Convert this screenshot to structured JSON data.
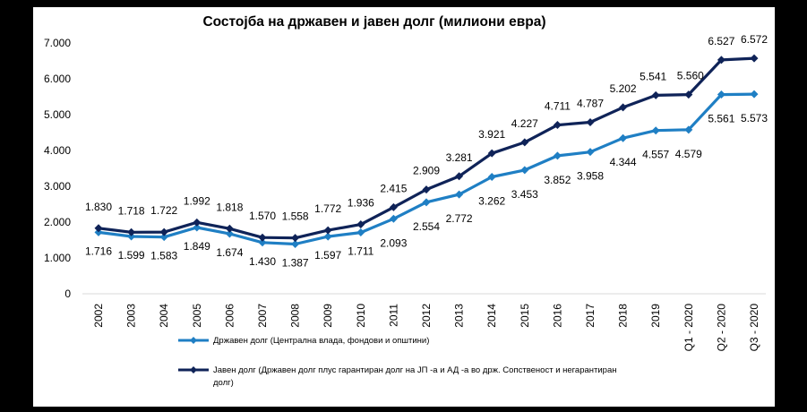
{
  "chart_data": {
    "type": "line",
    "title": "Состојба на државен и јавен долг (милиони евра)",
    "categories": [
      "2002",
      "2003",
      "2004",
      "2005",
      "2006",
      "2007",
      "2008",
      "2009",
      "2010",
      "2011",
      "2012",
      "2013",
      "2014",
      "2015",
      "2016",
      "2017",
      "2018",
      "2019",
      "Q1 - 2020",
      "Q2 - 2020",
      "Q3 - 2020"
    ],
    "ylim": [
      0,
      7000
    ],
    "yticks": [
      0,
      1000,
      2000,
      3000,
      4000,
      5000,
      6000,
      7000
    ],
    "ytick_labels": [
      "0",
      "1.000",
      "2.000",
      "3.000",
      "4.000",
      "5.000",
      "6.000",
      "7.000"
    ],
    "grid": false,
    "legend_position": "bottom",
    "series": [
      {
        "name": "Државен долг (Централна влада, фондови и општини)",
        "color": "#1f7fc4",
        "values": [
          1716,
          1599,
          1583,
          1849,
          1674,
          1430,
          1387,
          1597,
          1711,
          2093,
          2554,
          2772,
          3262,
          3453,
          3852,
          3958,
          4344,
          4557,
          4579,
          5561,
          5573
        ],
        "labels": [
          "1.716",
          "1.599",
          "1.583",
          "1.849",
          "1.674",
          "1.430",
          "1.387",
          "1.597",
          "1.711",
          "2.093",
          "2.554",
          "2.772",
          "3.262",
          "3.453",
          "3.852",
          "3.958",
          "4.344",
          "4.557",
          "4.579",
          "5.561",
          "5.573"
        ]
      },
      {
        "name": "Јавен долг (Државен долг плус гарантиран долг на ЈП -а и АД -а во држ. Сопственост и негарантиран долг)",
        "legend_lines": [
          "Јавен долг (Државен долг плус гарантиран долг на ЈП -а и АД -а во држ. Сопственост и негарантиран",
          "долг)"
        ],
        "color": "#0f2358",
        "values": [
          1830,
          1718,
          1722,
          1992,
          1818,
          1570,
          1558,
          1772,
          1936,
          2415,
          2909,
          3281,
          3921,
          4227,
          4711,
          4787,
          5202,
          5541,
          5560,
          6527,
          6572
        ],
        "labels": [
          "1.830",
          "1.718",
          "1.722",
          "1.992",
          "1.818",
          "1.570",
          "1.558",
          "1.772",
          "1.936",
          "2.415",
          "2.909",
          "3.281",
          "3.921",
          "4.227",
          "4.711",
          "4.787",
          "5.202",
          "5.541",
          "5.560",
          "6.527",
          "6.572"
        ]
      }
    ]
  }
}
